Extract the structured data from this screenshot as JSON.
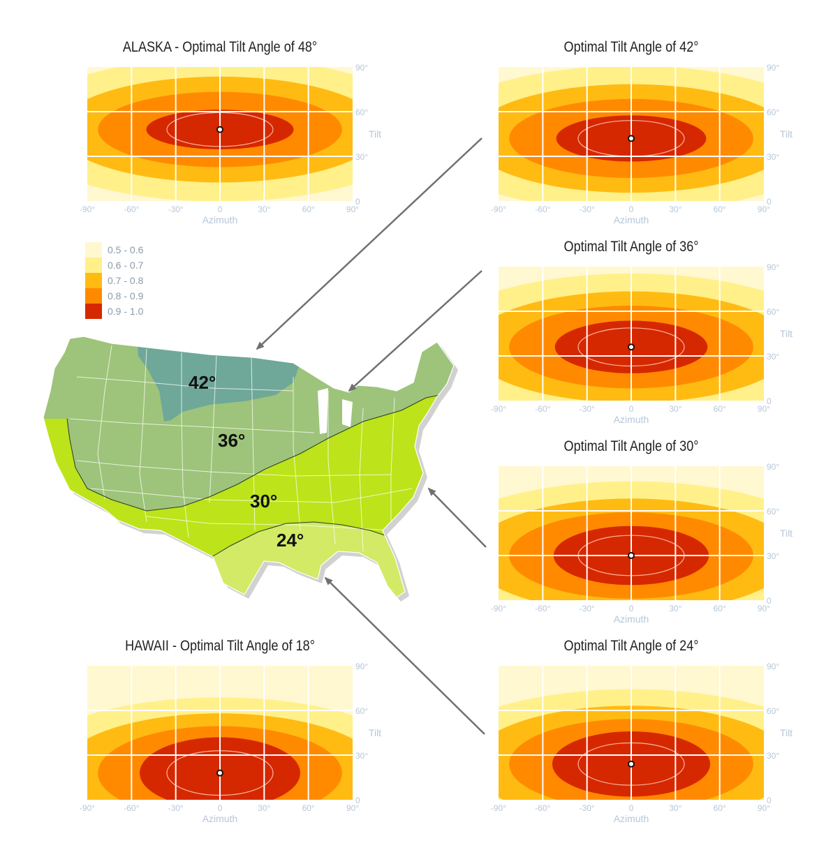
{
  "colors": {
    "band_0_5": "#fff8d0",
    "band_0_6": "#fff08a",
    "band_0_7": "#ffbb12",
    "band_0_8": "#ff8a00",
    "band_0_9": "#d62800",
    "grid": "#ffffff",
    "axis_text": "#b6c6d8",
    "zone_42": "#6fa898",
    "zone_36": "#9dc47a",
    "zone_30": "#bde31a",
    "zone_24": "#d2ea66",
    "arrow": "#707070"
  },
  "legend": [
    {
      "label": "0.5 - 0.6",
      "color": "#fff8d0"
    },
    {
      "label": "0.6 - 0.7",
      "color": "#fff08a"
    },
    {
      "label": "0.7 - 0.8",
      "color": "#ffbb12"
    },
    {
      "label": "0.8 - 0.9",
      "color": "#ff8a00"
    },
    {
      "label": "0.9 - 1.0",
      "color": "#d62800"
    }
  ],
  "axes": {
    "x_label": "Azimuth",
    "y_label": "Tilt",
    "x_ticks": [
      "-90°",
      "-60°",
      "-30°",
      "0",
      "30°",
      "60°",
      "90°"
    ],
    "y_ticks": [
      "90°",
      "60°",
      "30°",
      "0"
    ]
  },
  "panels": {
    "alaska": {
      "title": "ALASKA - Optimal Tilt Angle of 48°"
    },
    "t42": {
      "title": "Optimal Tilt Angle of 42°"
    },
    "t36": {
      "title": "Optimal Tilt Angle of 36°"
    },
    "t30": {
      "title": "Optimal Tilt Angle of 30°"
    },
    "hawaii": {
      "title": "HAWAII - Optimal Tilt Angle of 18°"
    },
    "t24": {
      "title": "Optimal Tilt Angle of 24°"
    }
  },
  "map": {
    "zones": [
      "42°",
      "36°",
      "30°",
      "24°"
    ]
  },
  "chart_data": [
    {
      "type": "heatmap",
      "title": "ALASKA - Optimal Tilt Angle of 48°",
      "xlabel": "Azimuth",
      "ylabel": "Tilt",
      "xlim": [
        -90,
        90
      ],
      "ylim": [
        0,
        90
      ],
      "optimum": {
        "azimuth": 0,
        "tilt": 48
      }
    },
    {
      "type": "heatmap",
      "title": "Optimal Tilt Angle of 42°",
      "xlabel": "Azimuth",
      "ylabel": "Tilt",
      "xlim": [
        -90,
        90
      ],
      "ylim": [
        0,
        90
      ],
      "optimum": {
        "azimuth": 0,
        "tilt": 42
      }
    },
    {
      "type": "heatmap",
      "title": "Optimal Tilt Angle of 36°",
      "xlabel": "Azimuth",
      "ylabel": "Tilt",
      "xlim": [
        -90,
        90
      ],
      "ylim": [
        0,
        90
      ],
      "optimum": {
        "azimuth": 0,
        "tilt": 36
      }
    },
    {
      "type": "heatmap",
      "title": "Optimal Tilt Angle of 30°",
      "xlabel": "Azimuth",
      "ylabel": "Tilt",
      "xlim": [
        -90,
        90
      ],
      "ylim": [
        0,
        90
      ],
      "optimum": {
        "azimuth": 0,
        "tilt": 30
      }
    },
    {
      "type": "heatmap",
      "title": "HAWAII - Optimal Tilt Angle of 18°",
      "xlabel": "Azimuth",
      "ylabel": "Tilt",
      "xlim": [
        -90,
        90
      ],
      "ylim": [
        0,
        90
      ],
      "optimum": {
        "azimuth": 0,
        "tilt": 18
      }
    },
    {
      "type": "heatmap",
      "title": "Optimal Tilt Angle of 24°",
      "xlabel": "Azimuth",
      "ylabel": "Tilt",
      "xlim": [
        -90,
        90
      ],
      "ylim": [
        0,
        90
      ],
      "optimum": {
        "azimuth": 0,
        "tilt": 24
      }
    }
  ]
}
